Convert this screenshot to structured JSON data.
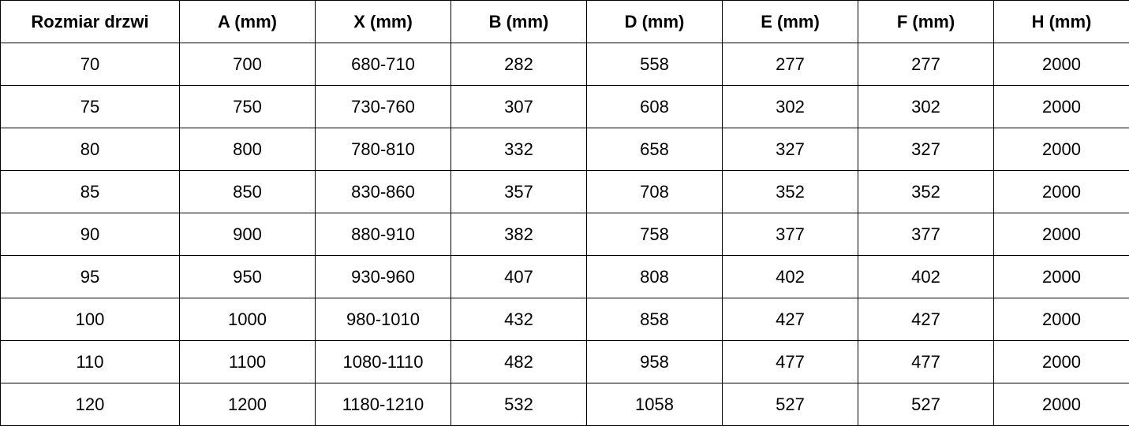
{
  "table": {
    "headers": [
      "Rozmiar drzwi",
      "A (mm)",
      "X (mm)",
      "B (mm)",
      "D (mm)",
      "E (mm)",
      "F (mm)",
      "H (mm)"
    ],
    "rows": [
      [
        "70",
        "700",
        "680-710",
        "282",
        "558",
        "277",
        "277",
        "2000"
      ],
      [
        "75",
        "750",
        "730-760",
        "307",
        "608",
        "302",
        "302",
        "2000"
      ],
      [
        "80",
        "800",
        "780-810",
        "332",
        "658",
        "327",
        "327",
        "2000"
      ],
      [
        "85",
        "850",
        "830-860",
        "357",
        "708",
        "352",
        "352",
        "2000"
      ],
      [
        "90",
        "900",
        "880-910",
        "382",
        "758",
        "377",
        "377",
        "2000"
      ],
      [
        "95",
        "950",
        "930-960",
        "407",
        "808",
        "402",
        "402",
        "2000"
      ],
      [
        "100",
        "1000",
        "980-1010",
        "432",
        "858",
        "427",
        "427",
        "2000"
      ],
      [
        "110",
        "1100",
        "1080-1110",
        "482",
        "958",
        "477",
        "477",
        "2000"
      ],
      [
        "120",
        "1200",
        "1180-1210",
        "532",
        "1058",
        "527",
        "527",
        "2000"
      ]
    ]
  }
}
